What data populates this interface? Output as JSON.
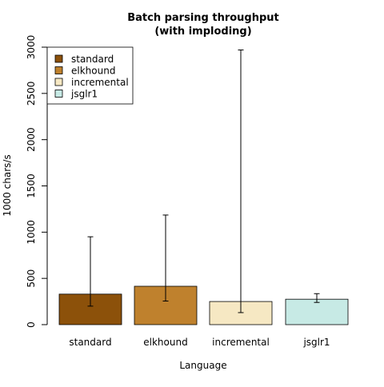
{
  "chart_data": {
    "type": "bar",
    "title": "Batch parsing throughput",
    "subtitle": "(with imploding)",
    "xlabel": "Language",
    "ylabel": "1000 chars/s",
    "ylim": [
      0,
      3000
    ],
    "yticks": [
      0,
      500,
      1000,
      1500,
      2000,
      2500,
      3000
    ],
    "categories": [
      "standard",
      "elkhound",
      "incremental",
      "jsglr1"
    ],
    "values": [
      330,
      415,
      250,
      275
    ],
    "error_low": [
      200,
      255,
      130,
      240
    ],
    "error_high": [
      950,
      1185,
      2970,
      335
    ],
    "colors": [
      "#8c510a",
      "#bf812d",
      "#f6e8c3",
      "#c7eae5"
    ],
    "legend": {
      "placement": "top-left",
      "entries": [
        {
          "label": "standard",
          "color": "#8c510a"
        },
        {
          "label": "elkhound",
          "color": "#bf812d"
        },
        {
          "label": "incremental",
          "color": "#f6e8c3"
        },
        {
          "label": "jsglr1",
          "color": "#c7eae5"
        }
      ]
    },
    "grid": false
  }
}
